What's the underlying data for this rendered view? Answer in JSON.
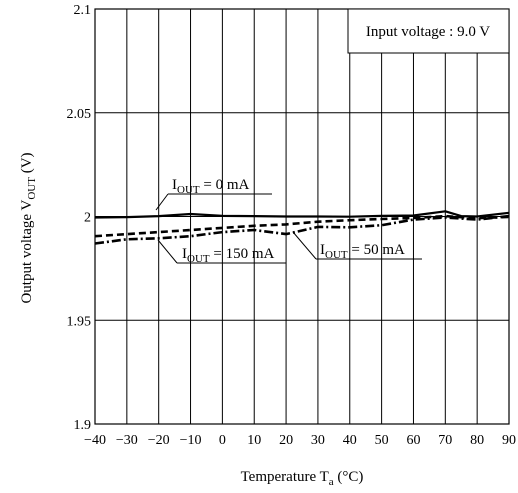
{
  "chart_data": {
    "type": "line",
    "xlabel": {
      "main": "Temperature  T",
      "sub": "a",
      "unit": "  (°C)"
    },
    "ylabel": {
      "main": "Output voltage  V",
      "sub": "OUT",
      "unit": "  (V)"
    },
    "xlim": [
      -40,
      90
    ],
    "ylim": [
      1.9,
      2.1
    ],
    "x_ticks": [
      -40,
      -30,
      -20,
      -10,
      0,
      10,
      20,
      30,
      40,
      50,
      60,
      70,
      80,
      90
    ],
    "x_tick_labels": [
      "−40",
      "−30",
      "−20",
      "−10",
      "0",
      "10",
      "20",
      "30",
      "40",
      "50",
      "60",
      "70",
      "80",
      "90"
    ],
    "y_ticks": [
      1.9,
      1.95,
      2.0,
      2.05,
      2.1
    ],
    "y_tick_labels": [
      "1.9",
      "1.95",
      "2",
      "2.05",
      "2.1"
    ],
    "grid": true,
    "annotation_box": "Input voltage : 9.0 V",
    "series": [
      {
        "label_main": "I",
        "label_sub": "OUT",
        "label_rest": " = 0 mA",
        "style": "solid",
        "x": [
          -40,
          -30,
          -20,
          -10,
          0,
          10,
          20,
          30,
          40,
          50,
          60,
          70,
          75,
          80,
          90
        ],
        "y": [
          1.9995,
          1.9997,
          2.0002,
          2.0012,
          2.0003,
          2.0002,
          2.0,
          2.0,
          1.9999,
          2.0003,
          2.0005,
          2.0025,
          2.0002,
          2.0,
          2.0018
        ]
      },
      {
        "label_main": "I",
        "label_sub": "OUT",
        "label_rest": " = 50 mA",
        "style": "dashed",
        "x": [
          -40,
          -30,
          -20,
          -10,
          0,
          10,
          20,
          30,
          40,
          50,
          60,
          70,
          80,
          90
        ],
        "y": [
          1.9905,
          1.9915,
          1.9925,
          1.9935,
          1.9945,
          1.9955,
          1.9962,
          1.9975,
          1.9982,
          1.9988,
          1.9993,
          2.0002,
          1.9992,
          1.9998
        ]
      },
      {
        "label_main": "I",
        "label_sub": "OUT",
        "label_rest": " = 150 mA",
        "style": "dashdot",
        "x": [
          -40,
          -30,
          -20,
          -10,
          0,
          10,
          20,
          30,
          40,
          50,
          60,
          70,
          80,
          90
        ],
        "y": [
          1.987,
          1.989,
          1.9895,
          1.9905,
          1.9925,
          1.9935,
          1.9915,
          1.995,
          1.9948,
          1.9958,
          1.9985,
          1.9995,
          1.9985,
          2.0002
        ]
      }
    ]
  }
}
